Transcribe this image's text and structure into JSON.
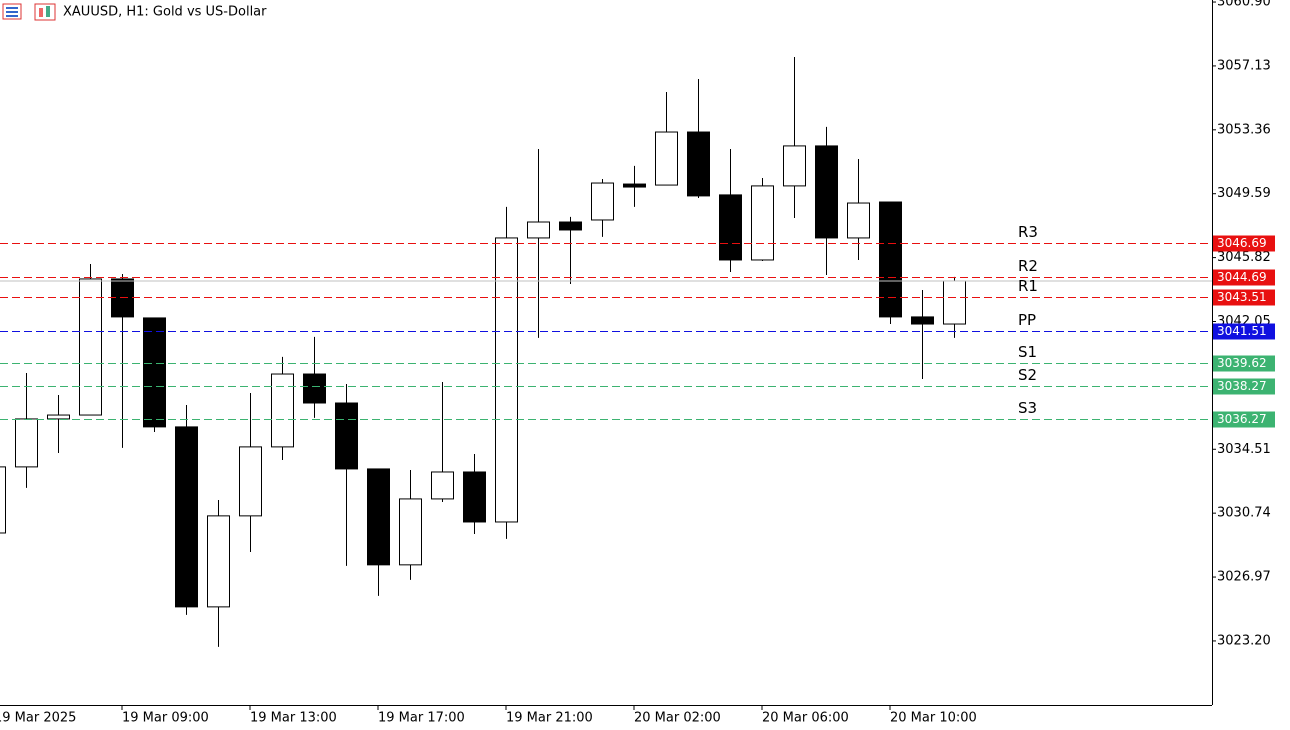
{
  "chart_data": {
    "type": "candlestick",
    "title": "XAUUSD, H1:  Gold vs US-Dollar",
    "categories": [
      "19 Mar 2025",
      null,
      null,
      null,
      "19 Mar 09:00",
      null,
      null,
      null,
      "19 Mar 13:00",
      null,
      null,
      null,
      "19 Mar 17:00",
      null,
      null,
      null,
      "19 Mar 21:00",
      null,
      null,
      null,
      "20 Mar 02:00",
      null,
      null,
      null,
      "20 Mar 06:00",
      null,
      null,
      null,
      "20 Mar 10:00",
      null,
      null
    ],
    "open": [
      3029.57,
      3033.47,
      3036.3,
      3036.53,
      3044.56,
      3042.26,
      3035.83,
      3025.21,
      3030.58,
      3034.65,
      3038.95,
      3037.24,
      3033.35,
      3027.69,
      3031.58,
      3033.17,
      3030.22,
      3046.98,
      3047.92,
      3048.04,
      3050.16,
      3050.1,
      3053.23,
      3049.52,
      3045.68,
      3050.05,
      3052.41,
      3046.98,
      3049.1,
      3042.32,
      3041.9
    ],
    "high": [
      3033.47,
      3039.01,
      3037.71,
      3045.44,
      3044.85,
      3042.26,
      3037.12,
      3031.52,
      3037.83,
      3039.96,
      3041.14,
      3038.36,
      3033.35,
      3033.29,
      3038.48,
      3034.23,
      3048.81,
      3052.23,
      3048.22,
      3050.46,
      3051.23,
      3055.59,
      3056.36,
      3052.23,
      3050.52,
      3057.66,
      3053.53,
      3051.64,
      3049.1,
      3043.91,
      3044.68
    ],
    "low": [
      3029.57,
      3032.23,
      3034.29,
      3036.53,
      3034.59,
      3035.53,
      3024.74,
      3022.85,
      3028.45,
      3033.88,
      3036.36,
      3027.63,
      3025.86,
      3026.8,
      3031.4,
      3029.51,
      3029.22,
      3041.08,
      3044.26,
      3047.04,
      3048.81,
      3050.1,
      3049.34,
      3044.97,
      3045.62,
      3048.16,
      3044.79,
      3045.68,
      3041.9,
      3038.66,
      3041.08
    ],
    "close": [
      3033.47,
      3036.3,
      3036.53,
      3044.56,
      3042.32,
      3035.83,
      3025.21,
      3030.58,
      3034.65,
      3038.95,
      3037.24,
      3033.35,
      3027.69,
      3031.58,
      3033.17,
      3030.22,
      3046.98,
      3047.92,
      3047.45,
      3050.22,
      3050.1,
      3053.23,
      3049.46,
      3045.68,
      3050.05,
      3052.41,
      3046.98,
      3049.04,
      3042.32,
      3041.9,
      3044.44
    ],
    "ylim": [
      3019.42,
      3061.02
    ],
    "yticks": [
      {
        "value": 3060.9,
        "label": "3060.90"
      },
      3057.13,
      3053.36,
      3049.59,
      3045.82,
      3042.05,
      3034.51,
      3030.74,
      3026.97,
      {
        "value": 3023.2,
        "label": "3023.20"
      }
    ],
    "levels": [
      {
        "name": "R3",
        "value": 3046.69,
        "color": "#e81010"
      },
      {
        "name": "R2",
        "value": 3044.69,
        "color": "#e81010"
      },
      {
        "name": "R1",
        "value": 3043.51,
        "color": "#e81010"
      },
      {
        "name": "PP",
        "value": 3041.51,
        "color": "#1010e0"
      },
      {
        "name": "S1",
        "value": 3039.62,
        "color": "#3cb371"
      },
      {
        "name": "S2",
        "value": 3038.27,
        "color": "#3cb371"
      },
      {
        "name": "S3",
        "value": 3036.27,
        "color": "#3cb371"
      }
    ],
    "up_color": "#ffffff",
    "down_color": "#000000"
  }
}
